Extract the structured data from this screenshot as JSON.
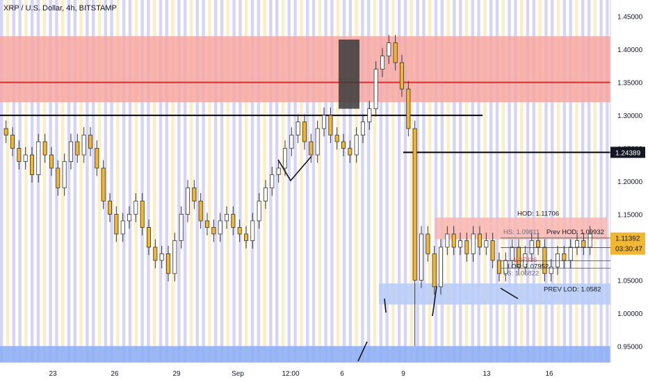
{
  "chart_data": {
    "type": "candlestick",
    "title": "XRP / U.S. Dollar, 4h, BITSTAMP",
    "y_ticks": [
      "1.45000",
      "1.40000",
      "1.35000",
      "1.30000",
      "1.25000",
      "1.20000",
      "1.15000",
      "1.10000",
      "1.05000",
      "1.00000",
      "0.95000"
    ],
    "y_tick_values": [
      1.45,
      1.4,
      1.35,
      1.3,
      1.25,
      1.2,
      1.15,
      1.1,
      1.05,
      1.0,
      0.95
    ],
    "ylim": [
      0.925,
      1.475
    ],
    "x_ticks": [
      "23",
      "26",
      "29",
      "Sep",
      "12:00",
      "6",
      "9",
      "13",
      "16"
    ],
    "price_labels": {
      "marker": "1.24389",
      "current_price": "1.11392",
      "countdown": "03:30:47",
      "low_marker": "0.95000"
    },
    "annotations": {
      "hod": "HOD: 1.11706",
      "prev_hod": "Prev HOD: 1.09932",
      "hs": "HS: 1.09811",
      "lod": "LOD: 1.07952",
      "ls": "LS: 1.06822",
      "prev_lod": "PREV LOD: 1.0582",
      "small_red": "1.07836"
    },
    "levels": {
      "red_zone": [
        1.32,
        1.42
      ],
      "red_line": 1.35,
      "black_line": 1.3,
      "resistance_1243": 1.24389,
      "hod_zone": [
        1.112,
        1.145
      ],
      "prev_lod_zone": [
        1.013,
        1.045
      ],
      "blue_zone": [
        0.925,
        0.95
      ]
    },
    "candles_close_path": [
      1.27,
      1.25,
      1.23,
      1.24,
      1.21,
      1.26,
      1.24,
      1.22,
      1.19,
      1.23,
      1.26,
      1.24,
      1.27,
      1.25,
      1.22,
      1.17,
      1.15,
      1.12,
      1.14,
      1.15,
      1.17,
      1.13,
      1.1,
      1.08,
      1.09,
      1.06,
      1.11,
      1.15,
      1.19,
      1.17,
      1.14,
      1.13,
      1.12,
      1.14,
      1.15,
      1.13,
      1.12,
      1.11,
      1.14,
      1.17,
      1.19,
      1.21,
      1.22,
      1.25,
      1.27,
      1.29,
      1.26,
      1.24,
      1.28,
      1.3,
      1.27,
      1.26,
      1.25,
      1.24,
      1.27,
      1.29,
      1.31,
      1.37,
      1.39,
      1.41,
      1.38,
      1.34,
      1.28,
      1.05,
      1.12,
      1.09,
      1.04,
      1.1,
      1.12,
      1.1,
      1.11,
      1.09,
      1.12,
      1.1,
      1.11,
      1.08,
      1.06,
      1.08,
      1.1,
      1.07,
      1.09,
      1.11,
      1.1,
      1.06,
      1.07,
      1.09,
      1.08,
      1.1,
      1.11,
      1.1,
      1.12
    ]
  },
  "colors": {
    "up": "#ffffff",
    "down": "#f2b730",
    "wick": "#333333",
    "band_a": "#c8c7f2",
    "band_b": "#fce6b6",
    "red_zone": "#f7a7a1",
    "red_line": "#d32f2f",
    "blue_zone": "#8fb0f5",
    "prev_lod_zone": "#b9cdf7",
    "hod_zone": "#f9b6b0",
    "dark_box": "#3a3a3a",
    "axis_text": "#131722",
    "price_box": "#f2b730"
  }
}
